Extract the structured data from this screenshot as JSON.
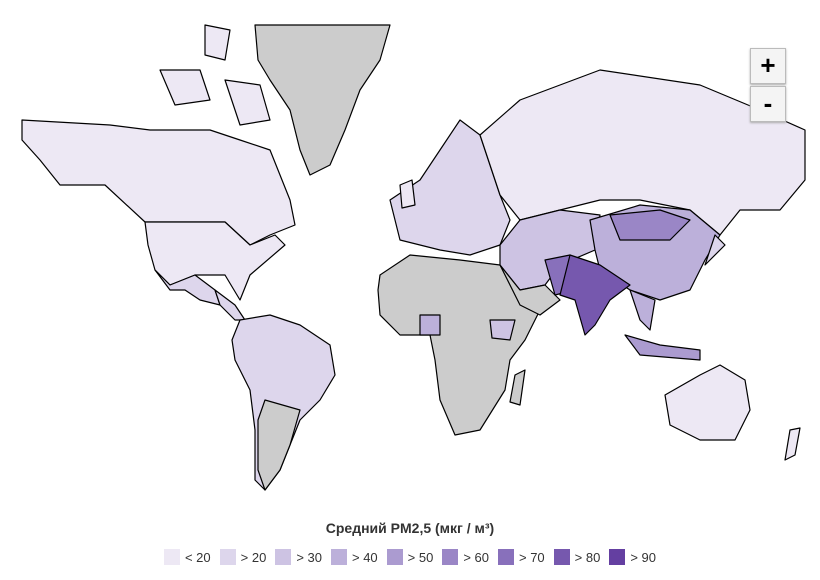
{
  "legend": {
    "title": "Средний PM2,5 (мкг / м³)",
    "items": [
      {
        "label": "< 20",
        "color": "#ede8f4"
      },
      {
        "label": "> 20",
        "color": "#ddd6ec"
      },
      {
        "label": "> 30",
        "color": "#cdc3e3"
      },
      {
        "label": "> 40",
        "color": "#bcb0da"
      },
      {
        "label": "> 50",
        "color": "#ab9bd0"
      },
      {
        "label": "> 60",
        "color": "#9a86c6"
      },
      {
        "label": "> 70",
        "color": "#8870bb"
      },
      {
        "label": "> 80",
        "color": "#7658ae"
      },
      {
        "label": "> 90",
        "color": "#643fa1"
      }
    ]
  },
  "zoom": {
    "in": "+",
    "out": "-"
  }
}
